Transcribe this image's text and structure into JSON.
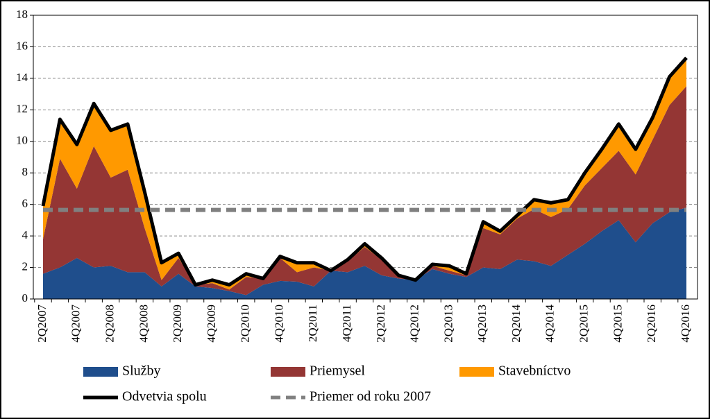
{
  "chart_data": {
    "type": "area",
    "categories": [
      "2Q2007",
      null,
      "4Q2007",
      null,
      "2Q2008",
      null,
      "4Q2008",
      null,
      "2Q2009",
      null,
      "4Q2009",
      null,
      "2Q2010",
      null,
      "4Q2010",
      null,
      "2Q2011",
      null,
      "4Q2011",
      null,
      "2Q2012",
      null,
      "4Q2012",
      null,
      "2Q2013",
      null,
      "4Q2013",
      null,
      "2Q2014",
      null,
      "4Q2014",
      null,
      "2Q2015",
      null,
      "4Q2015",
      null,
      "2Q2016",
      null,
      "4Q2016"
    ],
    "series": [
      {
        "name": "Služby",
        "color": "#1f4e8c",
        "style": "stacked",
        "values": [
          1.6,
          2.0,
          2.6,
          2.0,
          2.1,
          1.7,
          1.7,
          0.8,
          1.6,
          0.8,
          0.7,
          0.5,
          0.25,
          0.9,
          1.15,
          1.1,
          0.8,
          1.8,
          1.7,
          2.1,
          1.5,
          1.3,
          1.2,
          1.9,
          1.6,
          1.4,
          2.0,
          1.9,
          2.5,
          2.4,
          2.1,
          2.8,
          3.5,
          4.3,
          5.0,
          3.6,
          4.8,
          5.5,
          5.8
        ]
      },
      {
        "name": "Priemysel",
        "color": "#943634",
        "style": "stacked",
        "values": [
          2.2,
          6.9,
          4.4,
          7.7,
          5.6,
          6.5,
          2.8,
          0.4,
          1.0,
          0.1,
          0.3,
          0.1,
          1.15,
          0.4,
          1.45,
          0.6,
          1.2,
          0.0,
          0.7,
          1.2,
          1.0,
          0.2,
          0.0,
          0.2,
          0.2,
          0.1,
          2.5,
          2.2,
          2.6,
          3.3,
          3.1,
          2.9,
          3.7,
          4.0,
          4.4,
          4.3,
          5.3,
          6.8,
          7.7
        ]
      },
      {
        "name": "Stavebníctvo",
        "color": "#ff9900",
        "style": "stacked",
        "values": [
          2.1,
          2.5,
          2.8,
          2.7,
          3.0,
          2.9,
          2.3,
          1.1,
          0.3,
          0.0,
          0.2,
          0.3,
          0.2,
          0.0,
          0.1,
          0.6,
          0.3,
          0.0,
          0.1,
          0.2,
          0.1,
          0.0,
          0.0,
          0.1,
          0.3,
          0.1,
          0.4,
          0.2,
          0.2,
          0.6,
          0.9,
          0.6,
          0.8,
          1.2,
          1.7,
          1.6,
          1.4,
          1.8,
          1.8
        ]
      },
      {
        "name": "Odvetvia spolu",
        "color": "#000000",
        "style": "line",
        "values": [
          5.9,
          11.4,
          9.8,
          12.4,
          10.7,
          11.1,
          6.8,
          2.3,
          2.9,
          0.9,
          1.2,
          0.9,
          1.6,
          1.3,
          2.7,
          2.3,
          2.3,
          1.8,
          2.5,
          3.5,
          2.6,
          1.5,
          1.2,
          2.2,
          2.1,
          1.6,
          4.9,
          4.3,
          5.3,
          6.3,
          6.1,
          6.3,
          8.0,
          9.5,
          11.1,
          9.5,
          11.5,
          14.1,
          15.3
        ]
      },
      {
        "name": "Priemer od roku 2007",
        "color": "#808080",
        "style": "dashed",
        "values": [
          5.65,
          5.65,
          5.65,
          5.65,
          5.65,
          5.65,
          5.65,
          5.65,
          5.65,
          5.65,
          5.65,
          5.65,
          5.65,
          5.65,
          5.65,
          5.65,
          5.65,
          5.65,
          5.65,
          5.65,
          5.65,
          5.65,
          5.65,
          5.65,
          5.65,
          5.65,
          5.65,
          5.65,
          5.65,
          5.65,
          5.65,
          5.65,
          5.65,
          5.65,
          5.65,
          5.65,
          5.65,
          5.65,
          5.65
        ]
      }
    ],
    "ylim": [
      0,
      18
    ],
    "yticks": [
      0,
      2,
      4,
      6,
      8,
      10,
      12,
      14,
      16,
      18
    ],
    "grid": true
  }
}
